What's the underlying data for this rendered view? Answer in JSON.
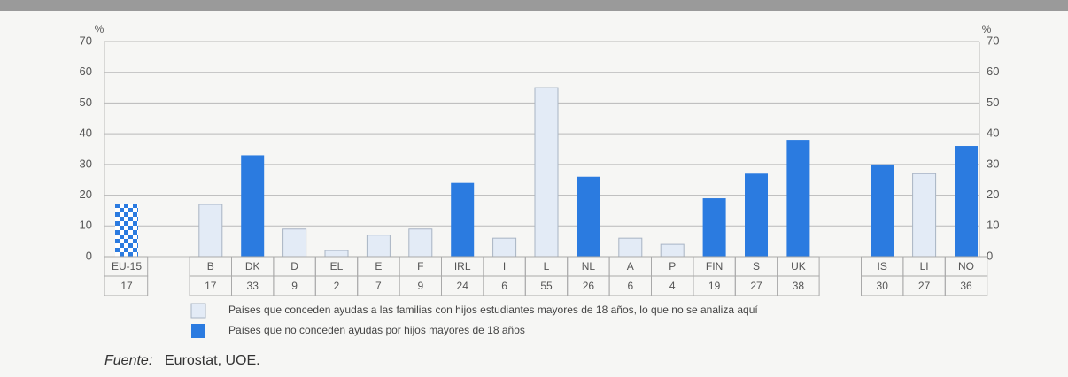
{
  "chart_data": {
    "type": "bar",
    "y_unit": "%",
    "categories": [
      "EU-15",
      "B",
      "DK",
      "D",
      "EL",
      "E",
      "F",
      "IRL",
      "I",
      "L",
      "NL",
      "A",
      "P",
      "FIN",
      "S",
      "UK",
      "IS",
      "LI",
      "NO"
    ],
    "values": [
      17,
      17,
      33,
      9,
      2,
      7,
      9,
      24,
      6,
      55,
      26,
      6,
      4,
      19,
      27,
      38,
      30,
      27,
      36
    ],
    "bar_fill": [
      "checkered",
      "light",
      "dark",
      "light",
      "light",
      "light",
      "light",
      "dark",
      "light",
      "light",
      "dark",
      "light",
      "light",
      "dark",
      "dark",
      "dark",
      "dark",
      "light",
      "dark"
    ],
    "colors": {
      "light": "#e3ebf6",
      "dark": "#2b7be0",
      "checkered": [
        "#2b7be0",
        "#ffffff"
      ]
    },
    "ylim": [
      0,
      70
    ],
    "yticks": [
      0,
      10,
      20,
      30,
      40,
      50,
      60,
      70
    ],
    "grid": true,
    "legend": [
      {
        "label": "Países que conceden ayudas a las familias con hijos estudiantes mayores de 18 años, lo que no se analiza aquí",
        "fill": "light"
      },
      {
        "label": "Países que no conceden ayudas por hijos mayores de 18 años",
        "fill": "dark"
      }
    ],
    "source_label": "Fuente:",
    "source": "Eurostat, UOE."
  }
}
